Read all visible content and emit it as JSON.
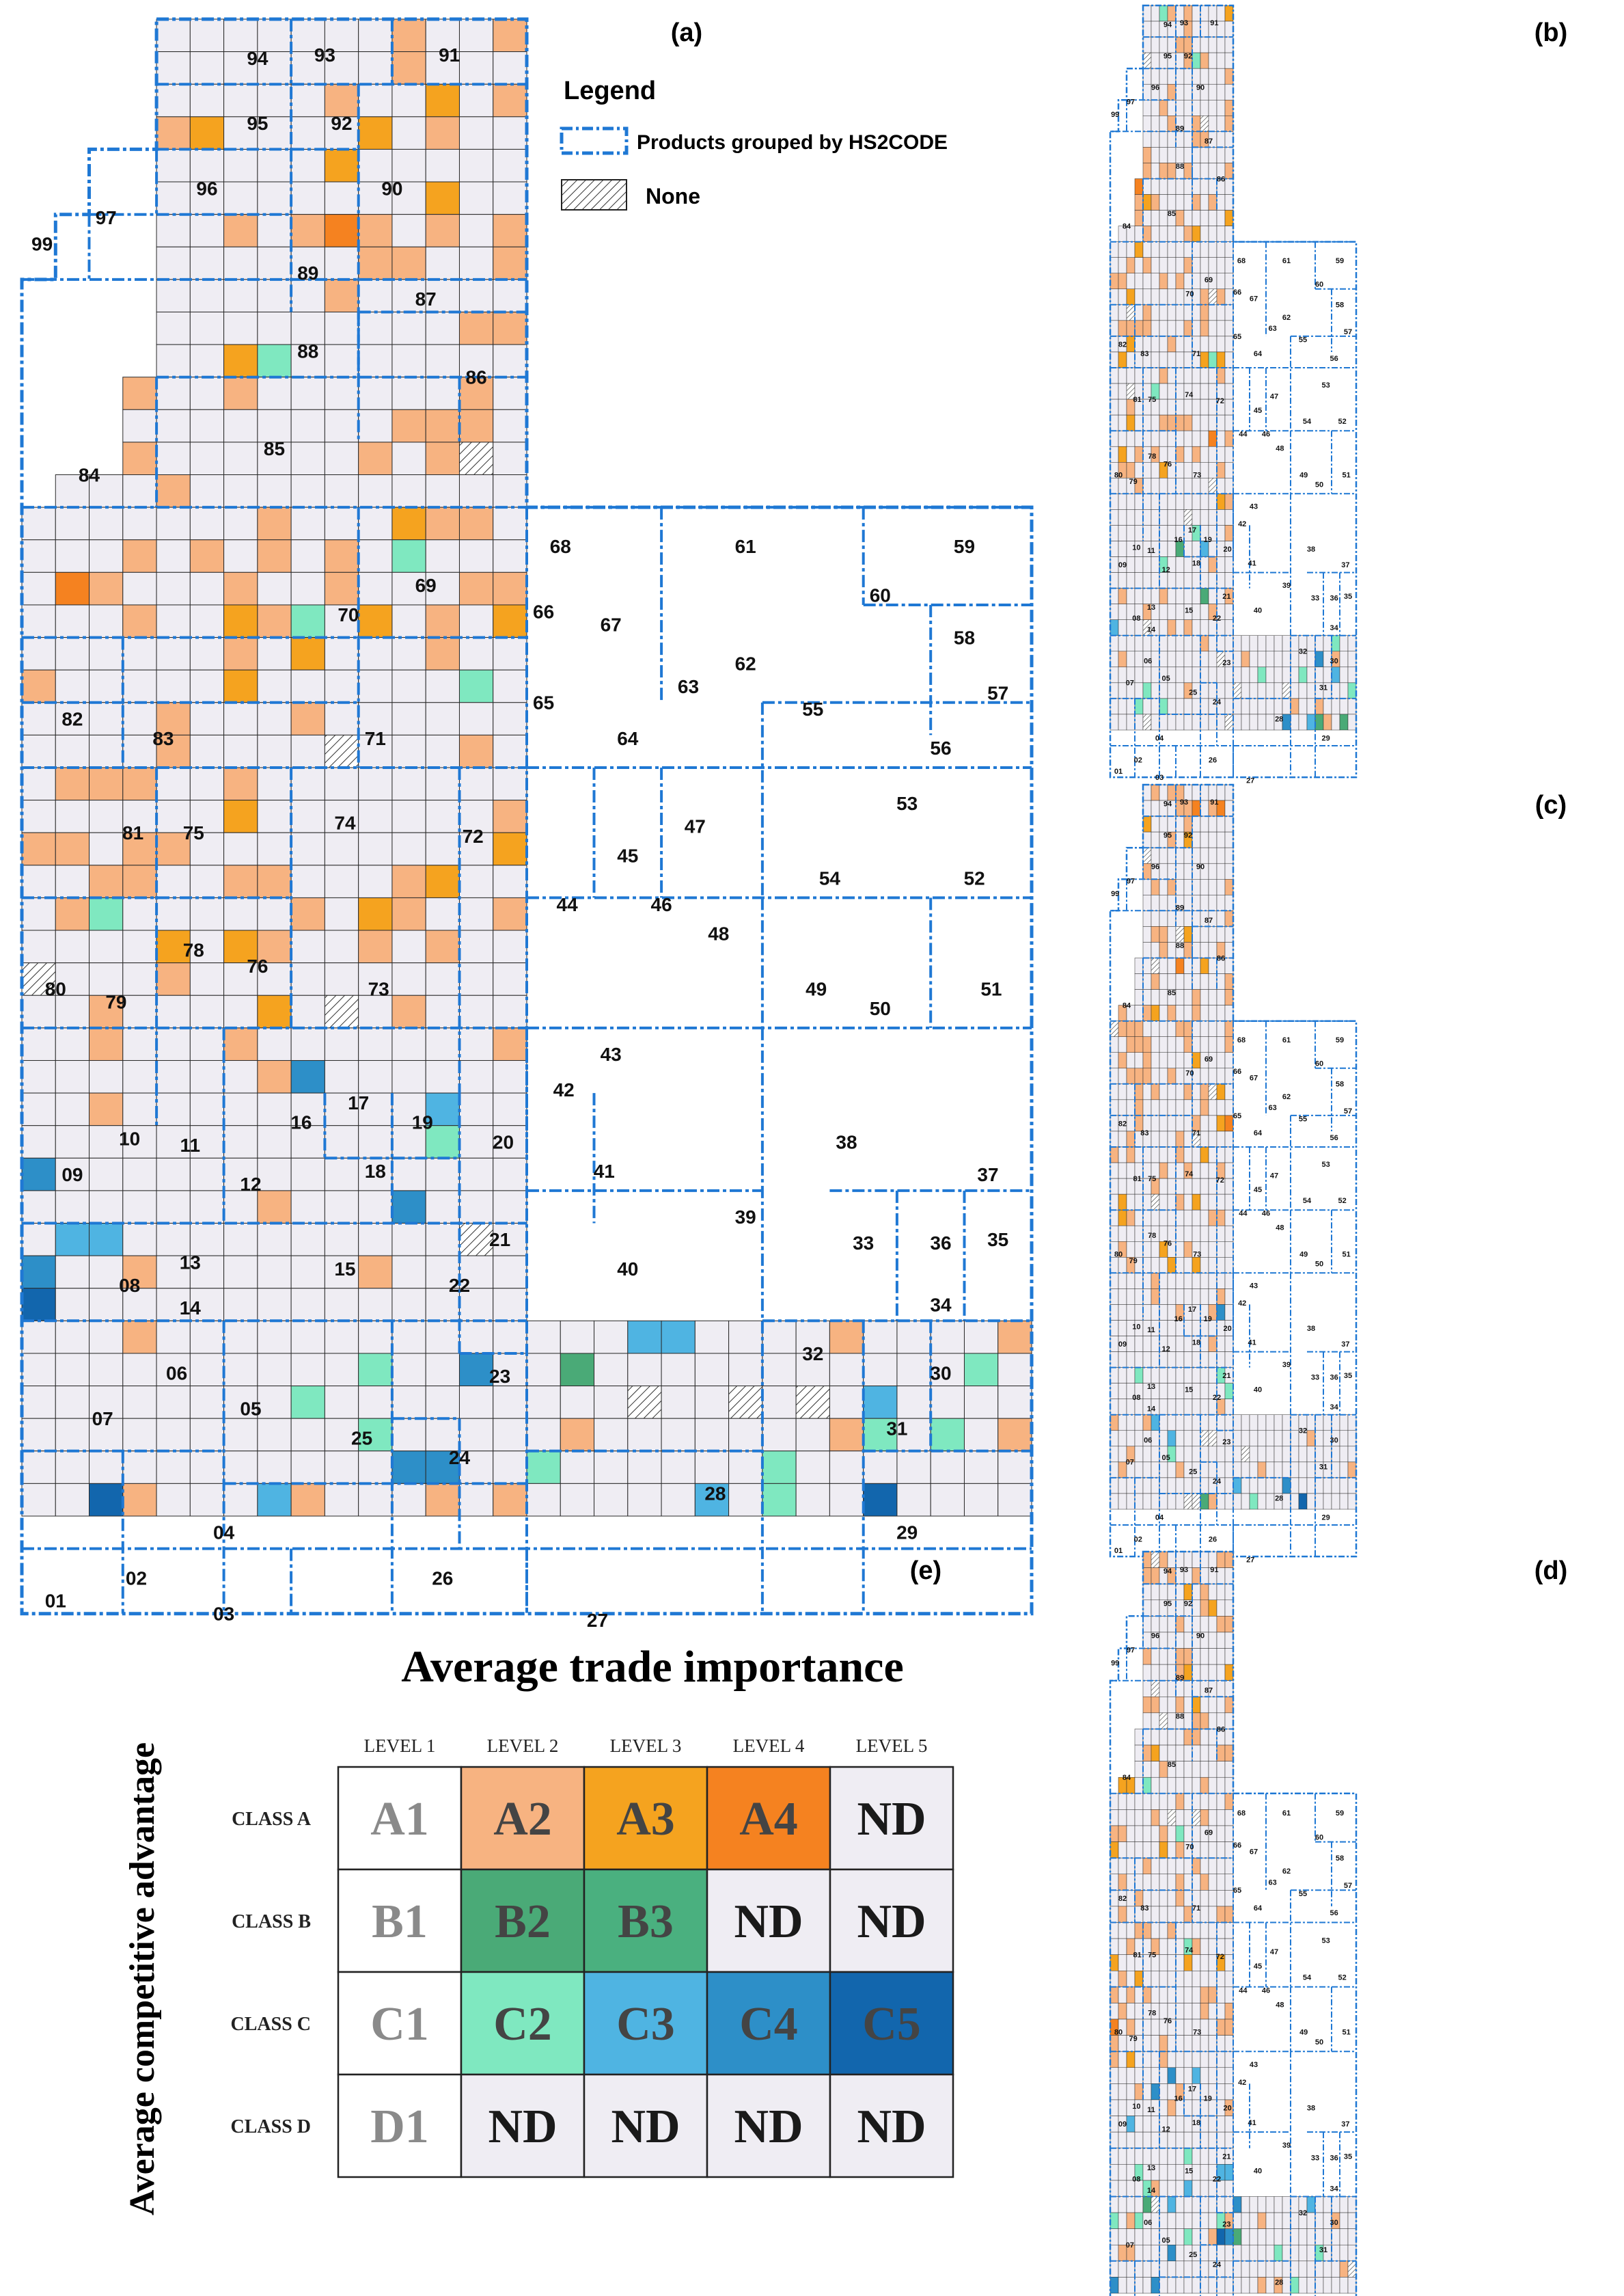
{
  "panels": {
    "a": "(a)",
    "b": "(b)",
    "c": "(c)",
    "d": "(d)",
    "e": "(e)"
  },
  "legend": {
    "title": "Legend",
    "grouped_label": "Products grouped by HS2CODE",
    "none_label": "None"
  },
  "matrix": {
    "title": "Average trade importance",
    "y_title": "Average  competitive advantage",
    "levels": [
      "LEVEL 1",
      "LEVEL 2",
      "LEVEL 3",
      "LEVEL 4",
      "LEVEL 5"
    ],
    "classes": [
      "CLASS A",
      "CLASS B",
      "CLASS C",
      "CLASS D"
    ],
    "cells": [
      [
        "A1",
        "A2",
        "A3",
        "A4",
        "ND"
      ],
      [
        "B1",
        "B2",
        "B3",
        "ND",
        "ND"
      ],
      [
        "C1",
        "C2",
        "C3",
        "C4",
        "C5"
      ],
      [
        "D1",
        "ND",
        "ND",
        "ND",
        "ND"
      ]
    ]
  },
  "colors": {
    "A1": "#ffffff",
    "A2": "#f7b381",
    "A3": "#f5a31f",
    "A4": "#f58220",
    "B1": "#ffffff",
    "B2": "#4aaa77",
    "B3": "#4ab07f",
    "C1": "#ffffff",
    "C2": "#7fe8c0",
    "C3": "#4fb4e2",
    "C4": "#2d8fc8",
    "C5": "#1266ad",
    "D1": "#ffffff",
    "ND": "#efedf3",
    "base": "#efedf3",
    "grid": "#2a2a2a",
    "border": "#1f78d4"
  },
  "hs_codes": [
    "01",
    "02",
    "03",
    "04",
    "05",
    "06",
    "07",
    "08",
    "09",
    "10",
    "11",
    "12",
    "13",
    "14",
    "15",
    "16",
    "17",
    "18",
    "19",
    "20",
    "21",
    "22",
    "23",
    "24",
    "25",
    "26",
    "27",
    "28",
    "29",
    "30",
    "31",
    "32",
    "33",
    "34",
    "35",
    "36",
    "37",
    "38",
    "39",
    "40",
    "41",
    "42",
    "43",
    "44",
    "45",
    "46",
    "47",
    "48",
    "49",
    "50",
    "51",
    "52",
    "53",
    "54",
    "55",
    "56",
    "57",
    "58",
    "59",
    "60",
    "61",
    "62",
    "63",
    "64",
    "65",
    "66",
    "67",
    "68",
    "69",
    "70",
    "71",
    "72",
    "73",
    "74",
    "75",
    "76",
    "78",
    "79",
    "80",
    "81",
    "82",
    "83",
    "84",
    "85",
    "86",
    "87",
    "88",
    "89",
    "90",
    "91",
    "92",
    "93",
    "94",
    "95",
    "96",
    "97",
    "99"
  ]
}
